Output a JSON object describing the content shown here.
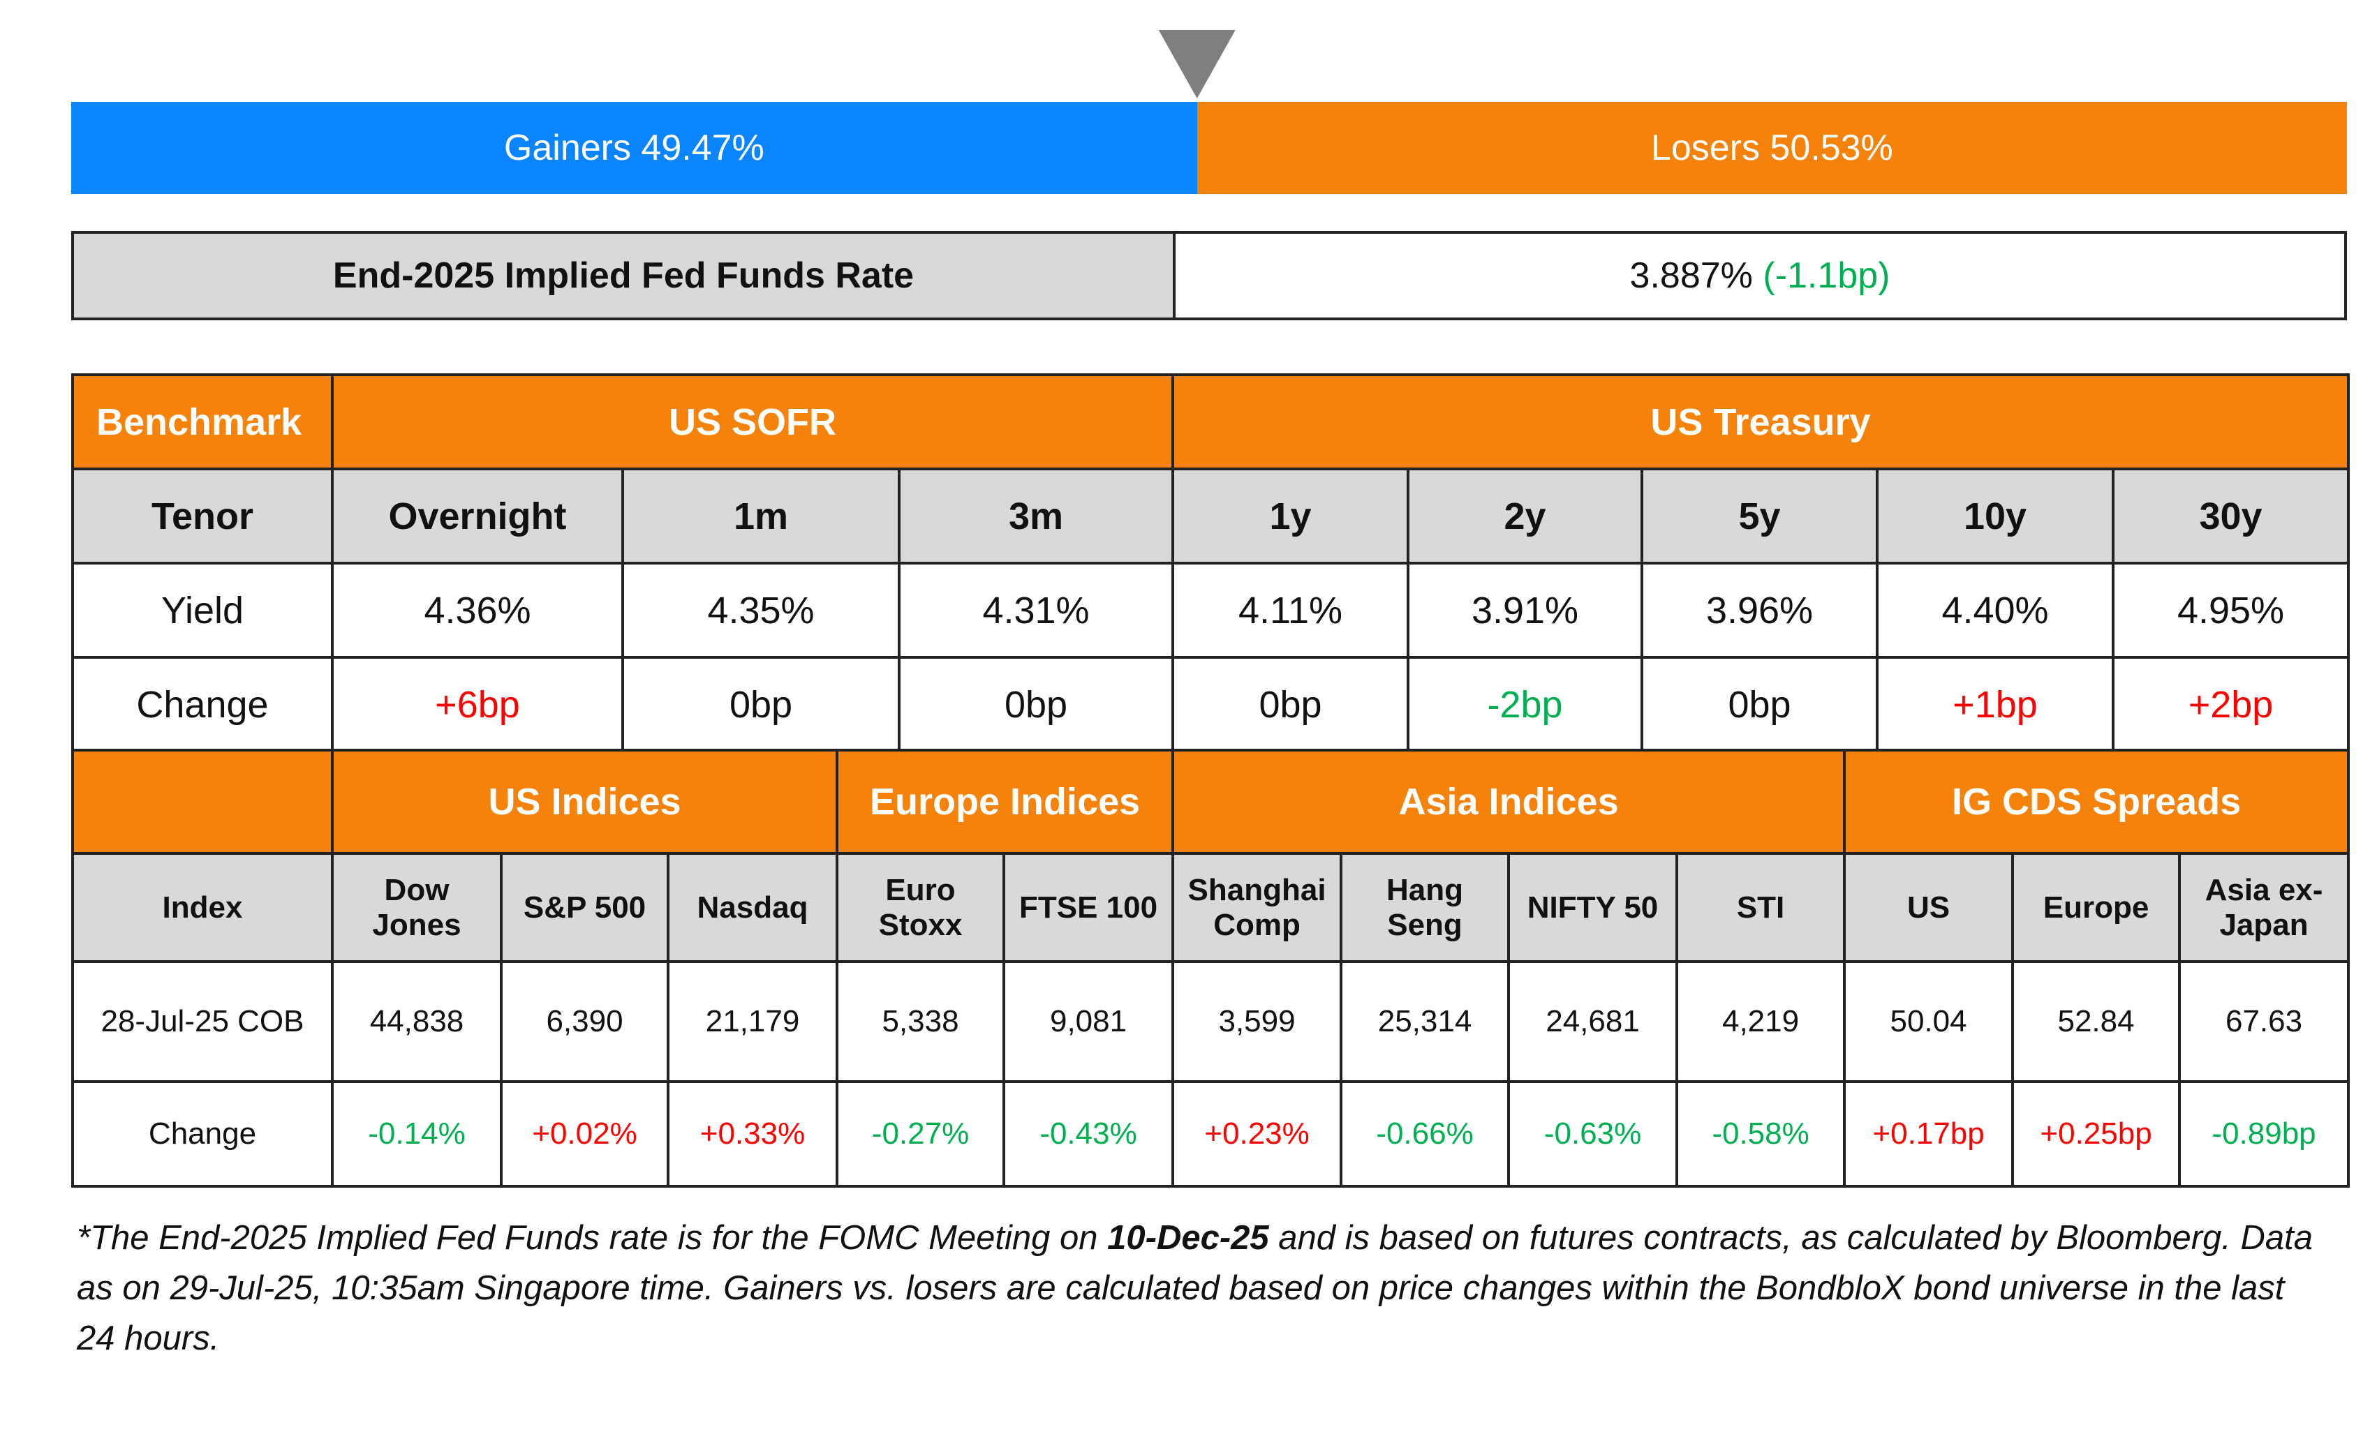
{
  "breadth": {
    "gainers": {
      "label": "Gainers 49.47%",
      "share": 49.47
    },
    "losers": {
      "label": "Losers 50.53%",
      "share": 50.53
    }
  },
  "fed_funds": {
    "label": "End-2025 Implied Fed Funds Rate",
    "rate": "3.887%",
    "change": "(-1.1bp)"
  },
  "rates_table": {
    "groups": [
      "Benchmark",
      "US SOFR",
      "US Treasury"
    ],
    "rows": [
      [
        "Tenor",
        "Overnight",
        "1m",
        "3m",
        "1y",
        "2y",
        "5y",
        "10y",
        "30y"
      ],
      [
        "Yield",
        "4.36%",
        "4.35%",
        "4.31%",
        "4.11%",
        "3.91%",
        "3.96%",
        "4.40%",
        "4.95%"
      ],
      [
        "Change",
        "+6bp",
        "0bp",
        "0bp",
        "0bp",
        "-2bp",
        "0bp",
        "+1bp",
        "+2bp"
      ]
    ]
  },
  "indices_table": {
    "groups": [
      "US Indices",
      "Europe Indices",
      "Asia Indices",
      "IG CDS Spreads"
    ],
    "rows": [
      [
        "Index",
        "Dow\nJones",
        "S&P 500",
        "Nasdaq",
        "Euro\nStoxx",
        "FTSE 100",
        "Shanghai\nComp",
        "Hang\nSeng",
        "NIFTY 50",
        "STI",
        "US",
        "Europe",
        "Asia ex-\nJapan"
      ],
      [
        "28-Jul-25 COB",
        "44,838",
        "6,390",
        "21,179",
        "5,338",
        "9,081",
        "3,599",
        "25,314",
        "24,681",
        "4,219",
        "50.04",
        "52.84",
        "67.63"
      ],
      [
        "Change",
        "-0.14%",
        "+0.02%",
        "+0.33%",
        "-0.27%",
        "-0.43%",
        "+0.23%",
        "-0.66%",
        "-0.63%",
        "-0.58%",
        "+0.17bp",
        "+0.25bp",
        "-0.89bp"
      ]
    ]
  },
  "footnote": [
    "*The End-2025 Implied Fed Funds rate is for the FOMC Meeting on ",
    "10-Dec-25",
    " and is based on futures contracts, as calculated by Bloomberg. Data as on 29-Jul-25, 10:35am Singapore time. Gainers vs. losers are calculated based on price changes within the BondbloX bond universe in the last 24 hours."
  ]
}
